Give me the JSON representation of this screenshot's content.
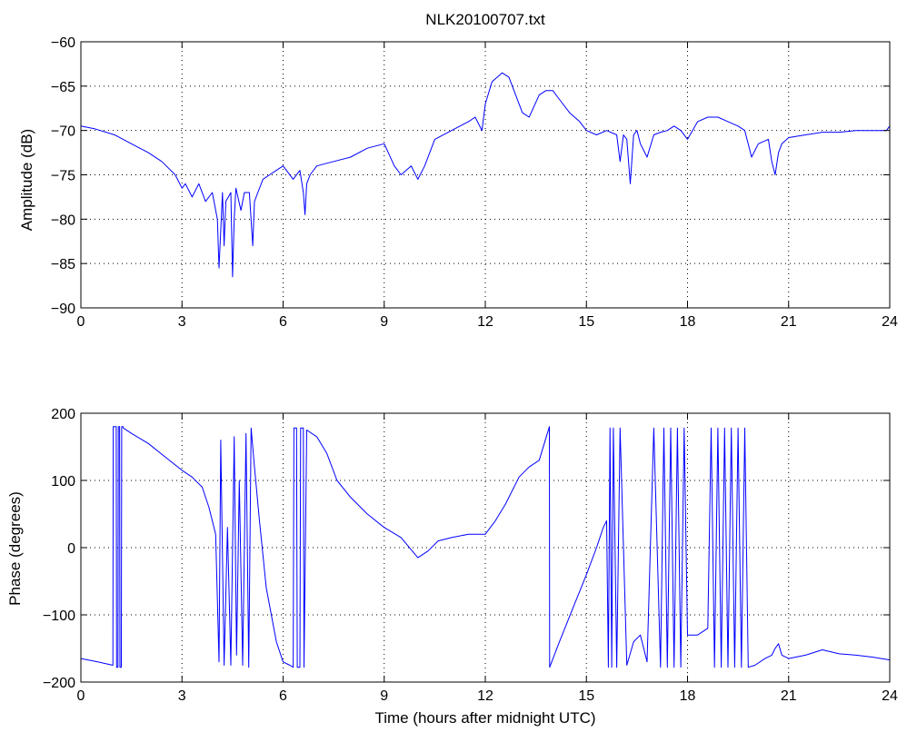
{
  "chart_data": [
    {
      "type": "line",
      "title": "NLK20100707.txt",
      "xlabel": "",
      "ylabel": "Amplitude (dB)",
      "xlim": [
        0,
        24
      ],
      "ylim": [
        -90,
        -60
      ],
      "xticks": [
        0,
        3,
        6,
        9,
        12,
        15,
        18,
        21,
        24
      ],
      "yticks": [
        -90,
        -85,
        -80,
        -75,
        -70,
        -65,
        -60
      ],
      "grid": true,
      "color": "#0000ff",
      "series": [
        {
          "name": "",
          "x": [
            0,
            0.4,
            1,
            1.5,
            2,
            2.4,
            2.8,
            3.0,
            3.1,
            3.3,
            3.5,
            3.7,
            3.9,
            4.05,
            4.1,
            4.2,
            4.25,
            4.3,
            4.45,
            4.5,
            4.55,
            4.6,
            4.75,
            4.85,
            5.0,
            5.1,
            5.15,
            5.25,
            5.4,
            5.6,
            5.8,
            6.0,
            6.3,
            6.5,
            6.6,
            6.65,
            6.7,
            6.8,
            7.0,
            7.5,
            8.0,
            8.5,
            9.0,
            9.3,
            9.5,
            9.8,
            10.0,
            10.2,
            10.5,
            11.0,
            11.5,
            11.7,
            11.9,
            12.0,
            12.2,
            12.5,
            12.7,
            12.9,
            13.1,
            13.3,
            13.6,
            13.8,
            14.0,
            14.2,
            14.5,
            14.8,
            15.0,
            15.3,
            15.6,
            15.9,
            16.0,
            16.1,
            16.2,
            16.3,
            16.4,
            16.5,
            16.6,
            16.8,
            17.0,
            17.2,
            17.4,
            17.6,
            17.8,
            18.0,
            18.3,
            18.6,
            18.9,
            19.2,
            19.5,
            19.7,
            19.9,
            20.1,
            20.4,
            20.5,
            20.6,
            20.7,
            20.8,
            21.0,
            21.5,
            22.0,
            22.5,
            23.0,
            23.5,
            23.9,
            24
          ],
          "y": [
            -69.5,
            -69.8,
            -70.5,
            -71.5,
            -72.5,
            -73.5,
            -75,
            -76.5,
            -76,
            -77.5,
            -76,
            -78,
            -77,
            -80,
            -85.5,
            -77,
            -83,
            -78,
            -77,
            -86.5,
            -80,
            -76.5,
            -79,
            -77,
            -77,
            -83,
            -78,
            -77,
            -75.5,
            -75,
            -74.5,
            -74,
            -75.5,
            -74.5,
            -77,
            -79.5,
            -76,
            -75,
            -74,
            -73.5,
            -73,
            -72,
            -71.5,
            -74,
            -75,
            -74,
            -75.5,
            -74,
            -71,
            -70,
            -69,
            -68.5,
            -70,
            -67,
            -64.5,
            -63.5,
            -64,
            -66,
            -68,
            -68.5,
            -66,
            -65.5,
            -65.5,
            -66.5,
            -68,
            -69,
            -70,
            -70.5,
            -70,
            -70.5,
            -73.5,
            -70.5,
            -71,
            -76,
            -70.5,
            -70,
            -71.5,
            -73,
            -70.5,
            -70.2,
            -70,
            -69.5,
            -70,
            -71,
            -69,
            -68.5,
            -68.5,
            -69,
            -69.5,
            -70,
            -73,
            -71.5,
            -71,
            -73.5,
            -75,
            -72.5,
            -71.5,
            -70.8,
            -70.5,
            -70.2,
            -70.2,
            -70,
            -70,
            -70,
            -69.5
          ]
        }
      ]
    },
    {
      "type": "line",
      "title": "",
      "xlabel": "Time (hours after midnight UTC)",
      "ylabel": "Phase (degrees)",
      "xlim": [
        0,
        24
      ],
      "ylim": [
        -200,
        200
      ],
      "xticks": [
        0,
        3,
        6,
        9,
        12,
        15,
        18,
        21,
        24
      ],
      "yticks": [
        -200,
        -100,
        0,
        100,
        200
      ],
      "grid": true,
      "color": "#0000ff",
      "series": [
        {
          "name": "",
          "x": [
            0,
            0.5,
            0.95,
            0.96,
            1.05,
            1.06,
            1.1,
            1.11,
            1.15,
            1.16,
            1.2,
            1.21,
            1.25,
            1.26,
            1.5,
            2.0,
            2.5,
            3.0,
            3.3,
            3.6,
            3.8,
            4.0,
            4.1,
            4.15,
            4.25,
            4.35,
            4.45,
            4.55,
            4.62,
            4.7,
            4.8,
            4.9,
            4.98,
            5.05,
            5.15,
            5.3,
            5.5,
            5.8,
            6.0,
            6.2,
            6.3,
            6.32,
            6.4,
            6.42,
            6.5,
            6.52,
            6.6,
            6.62,
            6.7,
            7.0,
            7.3,
            7.6,
            8.0,
            8.5,
            9.0,
            9.5,
            10.0,
            10.3,
            10.6,
            11.0,
            11.5,
            12.0,
            12.3,
            12.6,
            13.0,
            13.3,
            13.6,
            13.9,
            13.91,
            14.2,
            14.6,
            15.0,
            15.3,
            15.5,
            15.6,
            15.65,
            15.7,
            15.75,
            15.8,
            15.9,
            16.0,
            16.2,
            16.4,
            16.6,
            16.8,
            17.0,
            17.2,
            17.3,
            17.4,
            17.5,
            17.6,
            17.7,
            17.8,
            17.9,
            18.0,
            18.3,
            18.6,
            18.7,
            18.8,
            18.9,
            19.0,
            19.1,
            19.2,
            19.3,
            19.4,
            19.5,
            19.6,
            19.7,
            19.8,
            20.0,
            20.3,
            20.5,
            20.6,
            20.7,
            20.8,
            21.0,
            21.5,
            22.0,
            22.5,
            23.0,
            23.5,
            24
          ],
          "y": [
            -165,
            -170,
            -175,
            180,
            180,
            -178,
            -178,
            180,
            180,
            -178,
            -178,
            180,
            180,
            178,
            170,
            155,
            135,
            115,
            105,
            90,
            60,
            20,
            -170,
            160,
            -175,
            30,
            -175,
            165,
            -160,
            100,
            -175,
            170,
            -178,
            178,
            120,
            40,
            -60,
            -140,
            -170,
            -175,
            -178,
            178,
            178,
            -178,
            -178,
            178,
            178,
            -178,
            175,
            165,
            140,
            100,
            75,
            50,
            30,
            15,
            -15,
            -5,
            10,
            15,
            20,
            20,
            40,
            65,
            105,
            120,
            130,
            180,
            -178,
            -140,
            -90,
            -40,
            0,
            30,
            40,
            -178,
            178,
            -178,
            178,
            -178,
            178,
            -175,
            -140,
            -130,
            -170,
            178,
            -178,
            178,
            -178,
            178,
            -178,
            178,
            -178,
            178,
            -130,
            -130,
            -120,
            178,
            -178,
            178,
            -178,
            178,
            -178,
            178,
            -178,
            178,
            -178,
            178,
            -178,
            -175,
            -165,
            -160,
            -150,
            -143,
            -160,
            -165,
            -160,
            -152,
            -158,
            -160,
            -163,
            -167
          ]
        }
      ]
    }
  ]
}
